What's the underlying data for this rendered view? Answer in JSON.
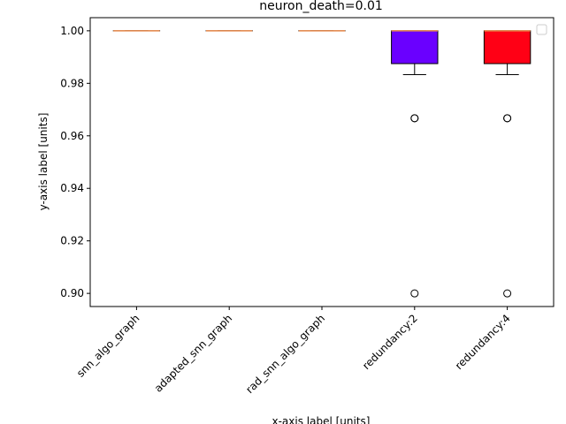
{
  "chart_data": {
    "type": "box",
    "title": "neuron_death=0.01",
    "xlabel": "x-axis label [units]",
    "ylabel": "y-axis label [units]",
    "ylim": [
      0.895,
      1.005
    ],
    "yticks": [
      0.9,
      0.92,
      0.94,
      0.96,
      0.98,
      1.0
    ],
    "ytick_labels": [
      "0.90",
      "0.92",
      "0.94",
      "0.96",
      "0.98",
      "1.00"
    ],
    "grid": false,
    "legend": {
      "placement": "top-right",
      "entries": []
    },
    "categories": [
      "snn_algo_graph",
      "adapted_snn_graph",
      "rad_snn_algo_graph",
      "redundancy:2",
      "redundancy:4"
    ],
    "boxes": [
      {
        "category": "snn_algo_graph",
        "q1": 1.0,
        "median": 1.0,
        "q3": 1.0,
        "whisker_low": 1.0,
        "whisker_high": 1.0,
        "outliers": [],
        "color": "#ffffff"
      },
      {
        "category": "adapted_snn_graph",
        "q1": 1.0,
        "median": 1.0,
        "q3": 1.0,
        "whisker_low": 1.0,
        "whisker_high": 1.0,
        "outliers": [],
        "color": "#ffffff"
      },
      {
        "category": "rad_snn_algo_graph",
        "q1": 1.0,
        "median": 1.0,
        "q3": 1.0,
        "whisker_low": 1.0,
        "whisker_high": 1.0,
        "outliers": [],
        "color": "#ffffff"
      },
      {
        "category": "redundancy:2",
        "q1": 0.9875,
        "median": 1.0,
        "q3": 1.0,
        "whisker_low": 0.9833,
        "whisker_high": 1.0,
        "outliers": [
          0.9667,
          0.9667,
          0.9
        ],
        "color": "#6a00ff"
      },
      {
        "category": "redundancy:4",
        "q1": 0.9875,
        "median": 1.0,
        "q3": 1.0,
        "whisker_low": 0.9833,
        "whisker_high": 1.0,
        "outliers": [
          0.9667,
          0.9667,
          0.9
        ],
        "color": "#ff0015"
      }
    ],
    "median_color": "#e8894a"
  }
}
